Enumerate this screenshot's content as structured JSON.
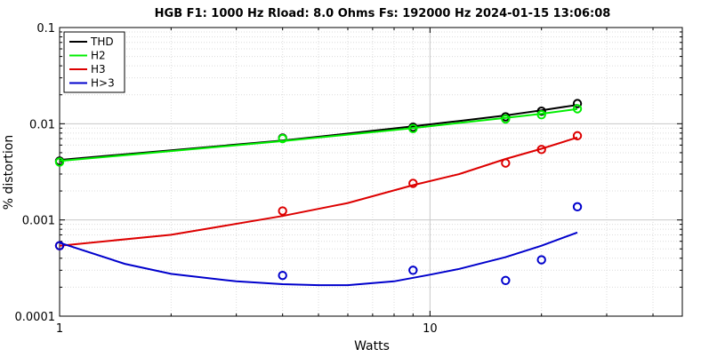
{
  "chart_data": {
    "type": "line",
    "title": "HGB  F1: 1000 Hz   Rload: 8.0 Ohms   Fs: 192000 Hz  2024-01-15 13:06:08",
    "xlabel": "Watts",
    "ylabel": "% distortion",
    "x_scale": "log",
    "y_scale": "log",
    "xlim": [
      1,
      48
    ],
    "ylim": [
      0.0001,
      0.1
    ],
    "grid": true,
    "legend_position": "top-left",
    "x_ticks": [
      {
        "value": 1,
        "label": "1"
      },
      {
        "value": 10,
        "label": "10"
      }
    ],
    "y_ticks": [
      {
        "value": 0.0001,
        "label": "0.0001"
      },
      {
        "value": 0.001,
        "label": "0.001"
      },
      {
        "value": 0.01,
        "label": "0.01"
      },
      {
        "value": 0.1,
        "label": "0.1"
      }
    ],
    "series": [
      {
        "name": "THD",
        "color": "#000000",
        "points_x": [
          1,
          4,
          9,
          16,
          20,
          25
        ],
        "points_y": [
          0.0041,
          0.0071,
          0.0092,
          0.0118,
          0.0135,
          0.0162
        ],
        "fit_x": [
          1,
          2,
          4,
          6,
          9,
          12,
          16,
          20,
          25
        ],
        "fit_y": [
          0.0042,
          0.0053,
          0.0067,
          0.0079,
          0.0094,
          0.0107,
          0.0122,
          0.0138,
          0.0157
        ]
      },
      {
        "name": "H2",
        "color": "#00ee00",
        "points_x": [
          1,
          4,
          9,
          16,
          20,
          25
        ],
        "points_y": [
          0.004,
          0.007,
          0.0089,
          0.0112,
          0.0124,
          0.0143
        ],
        "fit_x": [
          1,
          2,
          4,
          6,
          9,
          12,
          16,
          20,
          25
        ],
        "fit_y": [
          0.0041,
          0.0052,
          0.0066,
          0.0077,
          0.009,
          0.0102,
          0.0115,
          0.0127,
          0.0142
        ]
      },
      {
        "name": "H3",
        "color": "#dd0000",
        "points_x": [
          1,
          4,
          9,
          16,
          20,
          25
        ],
        "points_y": [
          0.00054,
          0.00124,
          0.0024,
          0.0039,
          0.0054,
          0.0075
        ],
        "fit_x": [
          1,
          2,
          4,
          6,
          9,
          12,
          16,
          20,
          25
        ],
        "fit_y": [
          0.00054,
          0.0007,
          0.0011,
          0.0015,
          0.0023,
          0.003,
          0.0043,
          0.0055,
          0.0072
        ]
      },
      {
        "name": "H>3",
        "color": "#0000cc",
        "points_x": [
          1,
          4,
          9,
          16,
          20,
          25
        ],
        "points_y": [
          0.00054,
          0.000265,
          0.0003,
          0.000235,
          0.000385,
          0.00137
        ],
        "fit_x": [
          1,
          1.5,
          2,
          3,
          4,
          5,
          6,
          8,
          10,
          12,
          14,
          16,
          20,
          25
        ],
        "fit_y": [
          0.00058,
          0.00035,
          0.000275,
          0.00023,
          0.000215,
          0.00021,
          0.00021,
          0.00023,
          0.00027,
          0.00031,
          0.00036,
          0.00041,
          0.00054,
          0.00074
        ]
      }
    ]
  }
}
